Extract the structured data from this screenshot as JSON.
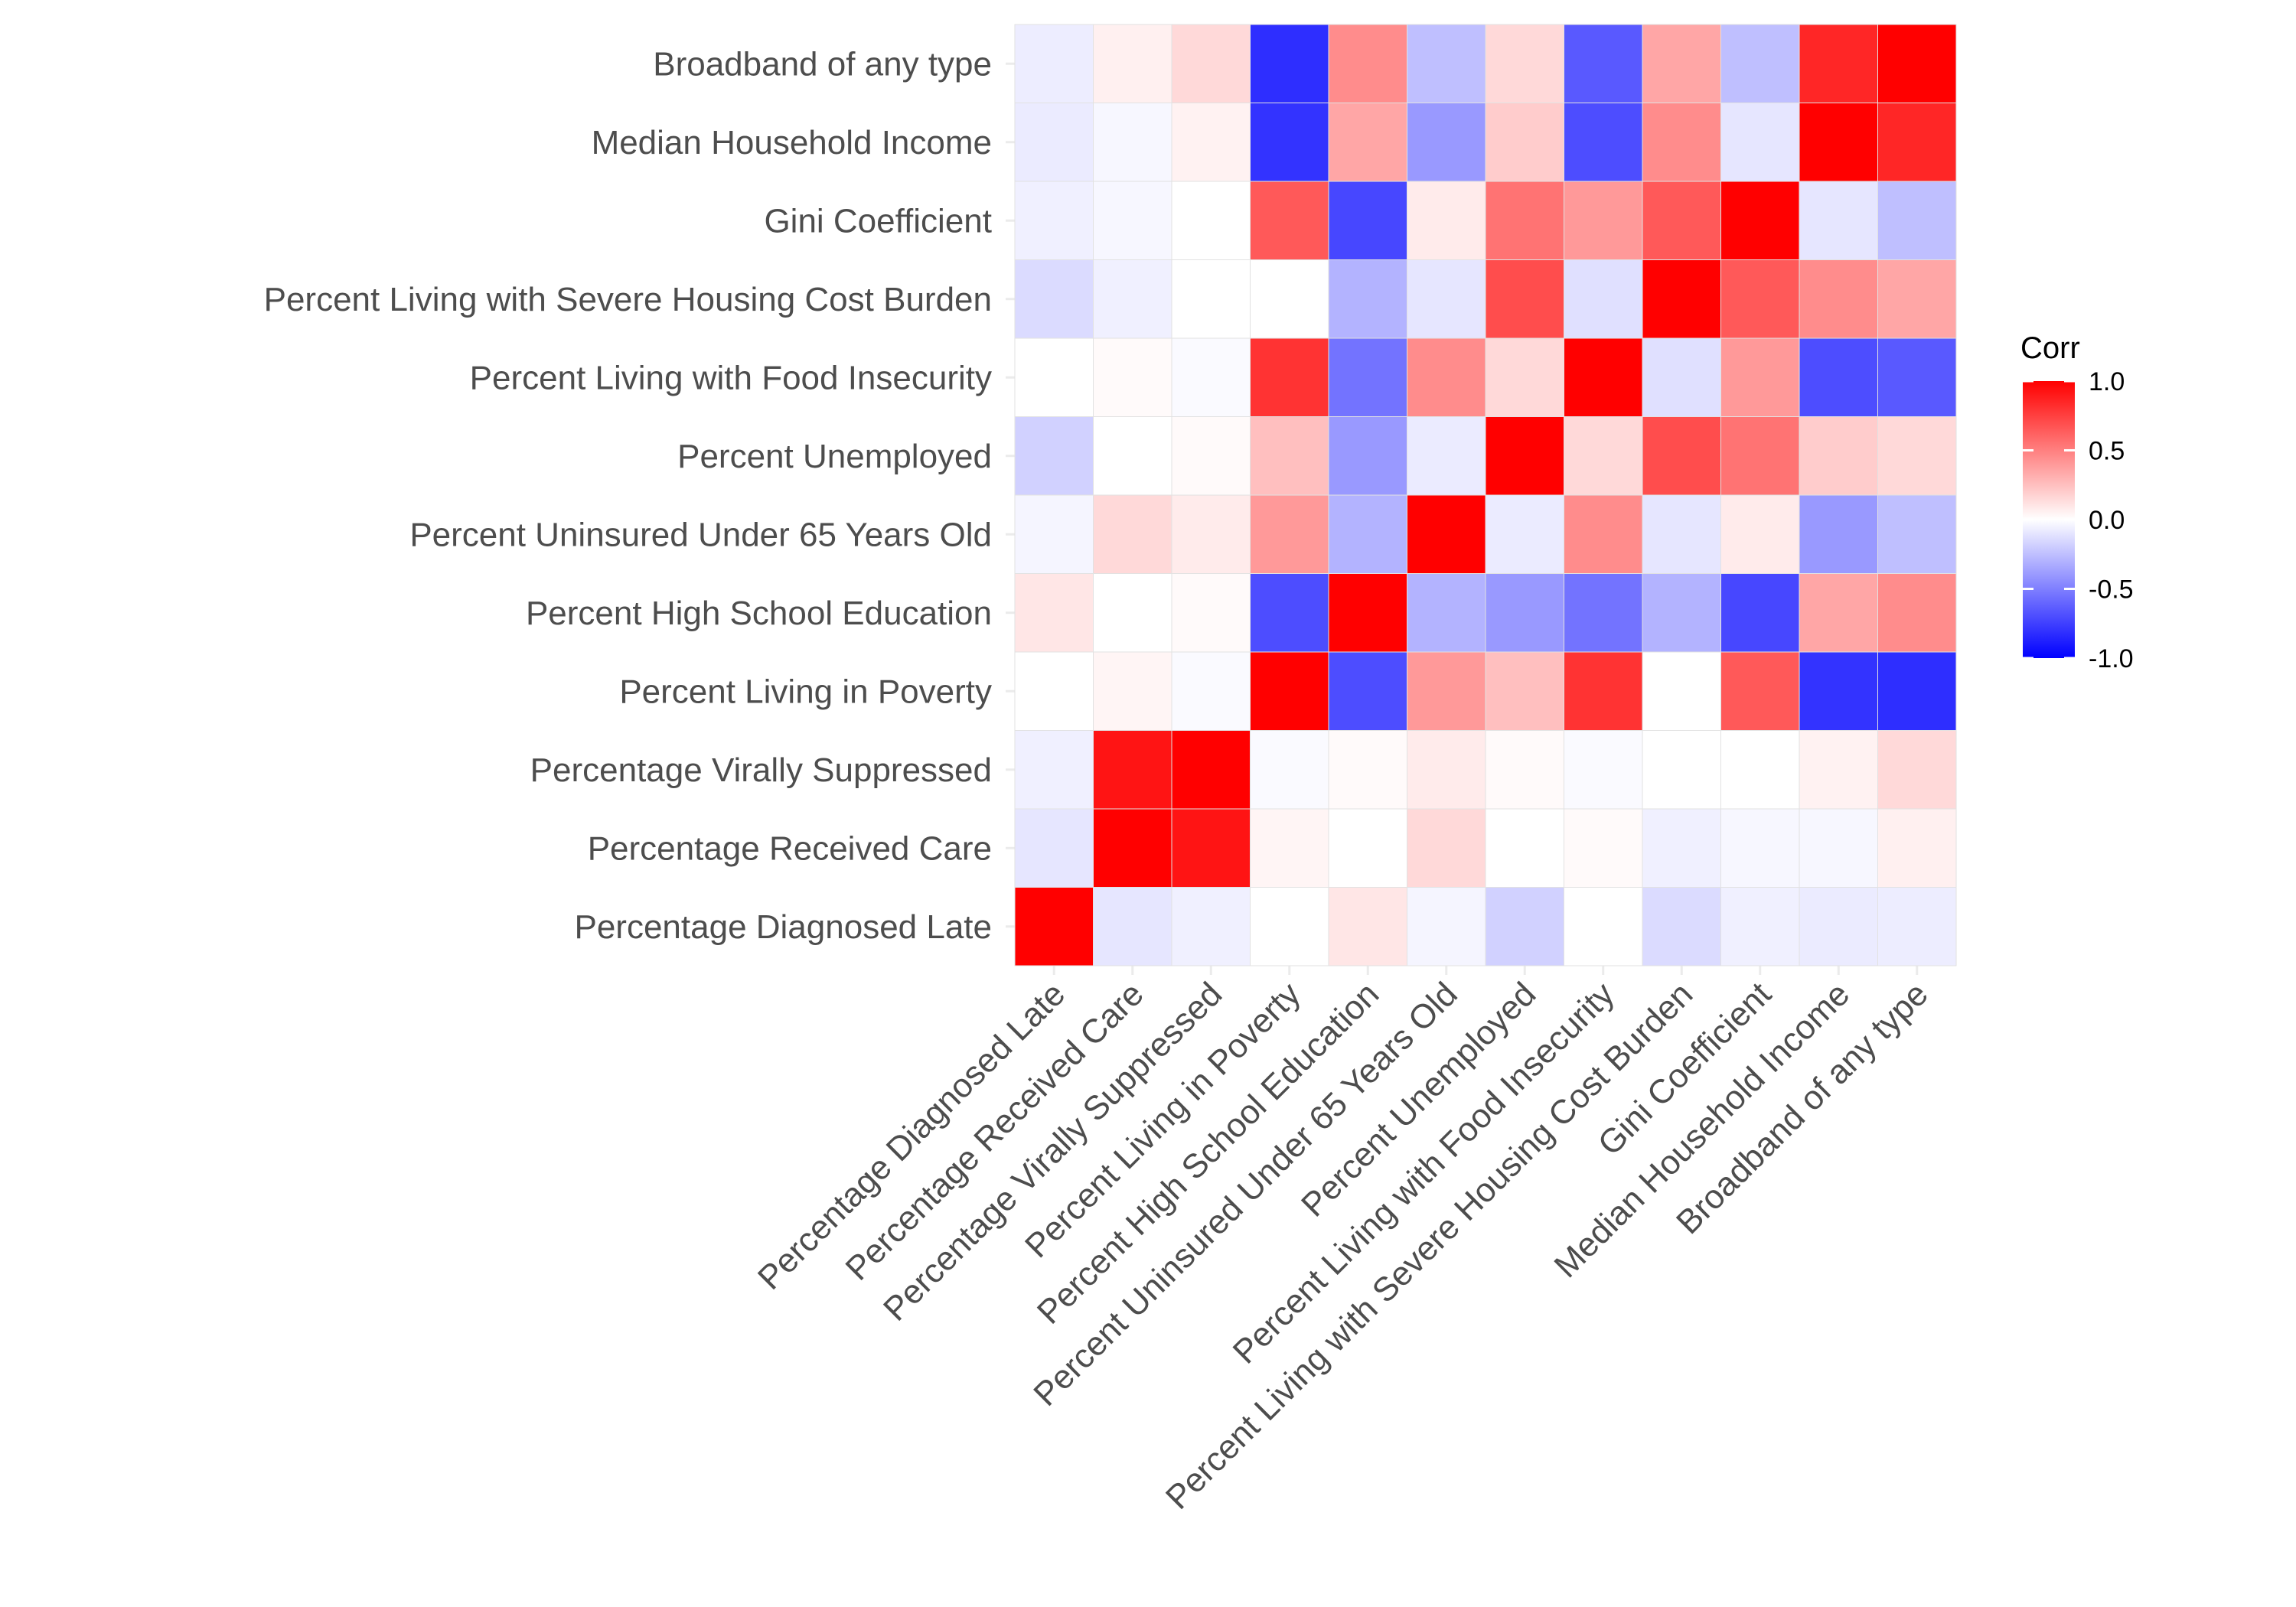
{
  "chart_data": {
    "type": "heatmap",
    "title": "",
    "xlabel": "",
    "ylabel": "",
    "variables": [
      "Percentage Diagnosed Late",
      "Percentage Received Care",
      "Percentage Virally Suppressed",
      "Percent Living in Poverty",
      "Percent High School Education",
      "Percent Uninsured Under 65 Years Old",
      "Percent Unemployed",
      "Percent Living with Food Insecurity",
      "Percent Living with Severe Housing Cost Burden",
      "Gini Coefficient",
      "Median Household Income",
      "Broadband of any type"
    ],
    "matrix": [
      [
        1.0,
        -0.1,
        -0.06,
        0.0,
        0.1,
        -0.04,
        -0.18,
        0.0,
        -0.14,
        -0.06,
        -0.08,
        -0.07
      ],
      [
        -0.1,
        1.0,
        0.92,
        0.04,
        0.0,
        0.15,
        0.0,
        0.02,
        -0.06,
        -0.03,
        -0.03,
        0.06
      ],
      [
        -0.06,
        0.92,
        1.0,
        -0.02,
        0.02,
        0.08,
        0.02,
        -0.02,
        0.0,
        0.0,
        0.05,
        0.15
      ],
      [
        0.0,
        0.04,
        -0.02,
        1.0,
        -0.7,
        0.4,
        0.25,
        0.8,
        0.0,
        0.65,
        -0.8,
        -0.82
      ],
      [
        0.1,
        0.0,
        0.02,
        -0.7,
        1.0,
        -0.3,
        -0.4,
        -0.55,
        -0.3,
        -0.72,
        0.35,
        0.45
      ],
      [
        -0.04,
        0.15,
        0.08,
        0.4,
        -0.3,
        1.0,
        -0.08,
        0.45,
        -0.1,
        0.08,
        -0.4,
        -0.25
      ],
      [
        -0.18,
        0.0,
        0.02,
        0.25,
        -0.4,
        -0.08,
        1.0,
        0.15,
        0.7,
        0.55,
        0.2,
        0.15
      ],
      [
        0.0,
        0.02,
        -0.02,
        0.8,
        -0.55,
        0.45,
        0.15,
        1.0,
        -0.12,
        0.4,
        -0.7,
        -0.65
      ],
      [
        -0.14,
        -0.06,
        0.0,
        0.0,
        -0.3,
        -0.1,
        0.7,
        -0.12,
        1.0,
        0.65,
        0.45,
        0.35
      ],
      [
        -0.06,
        -0.03,
        0.0,
        0.65,
        -0.72,
        0.08,
        0.55,
        0.4,
        0.65,
        1.0,
        -0.1,
        -0.25
      ],
      [
        -0.08,
        -0.03,
        0.05,
        -0.8,
        0.35,
        -0.4,
        0.2,
        -0.7,
        0.45,
        -0.1,
        1.0,
        0.85
      ],
      [
        -0.07,
        0.06,
        0.15,
        -0.82,
        0.45,
        -0.25,
        0.15,
        -0.65,
        0.35,
        -0.25,
        0.85,
        1.0
      ]
    ],
    "legend": {
      "title": "Corr",
      "position": "right",
      "range": [
        -1.0,
        1.0
      ],
      "ticks": [
        "1.0",
        "0.5",
        "0.0",
        "-0.5",
        "-1.0"
      ],
      "tick_values": [
        1.0,
        0.5,
        0.0,
        -0.5,
        -1.0
      ]
    },
    "colors": {
      "low": "#0000ff",
      "mid": "#ffffff",
      "high": "#ff0000"
    },
    "grid": true
  }
}
